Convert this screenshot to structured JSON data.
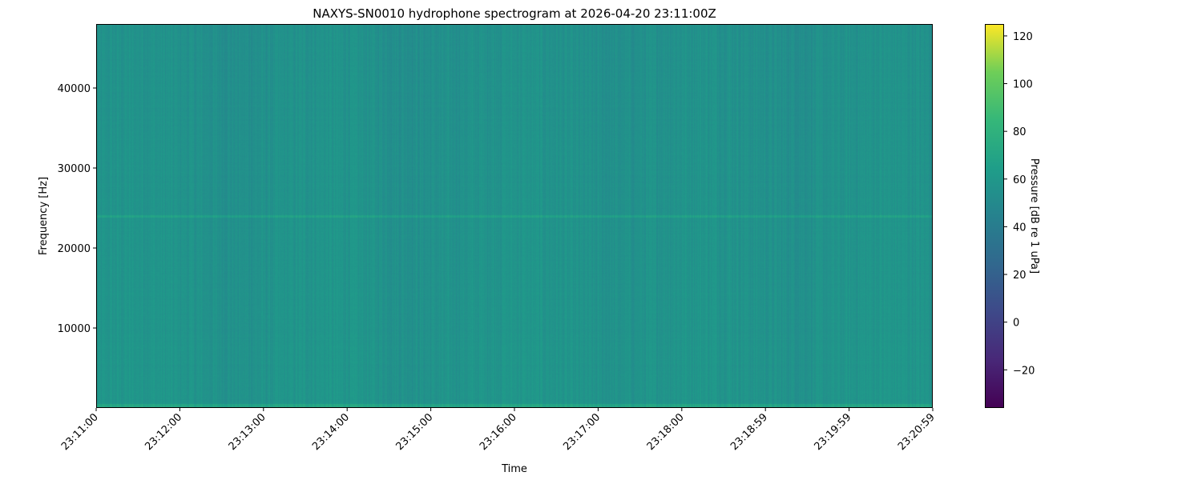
{
  "chart_data": {
    "type": "heatmap",
    "title": "NAXYS-SN0010 hydrophone spectrogram at 2026-04-20 23:11:00Z",
    "xlabel": "Time",
    "ylabel": "Frequency [Hz]",
    "x_tick_labels": [
      "23:11:00",
      "23:12:00",
      "23:13:00",
      "23:14:00",
      "23:15:00",
      "23:16:00",
      "23:17:00",
      "23:18:00",
      "23:18:59",
      "23:19:59",
      "23:20:59"
    ],
    "y_ticks": [
      10000,
      20000,
      30000,
      40000
    ],
    "ylim": [
      0,
      48000
    ],
    "colorbar": {
      "label": "Pressure [dB re 1 uPa]",
      "colormap": "viridis",
      "range": [
        -36,
        125
      ],
      "ticks": [
        -20,
        0,
        20,
        40,
        60,
        80,
        100,
        120
      ]
    },
    "background_level_db": 58,
    "low_frequency_level_db": 70,
    "tonal_band": {
      "frequency_hz": 24000,
      "level_db": 68
    },
    "grid": false
  }
}
